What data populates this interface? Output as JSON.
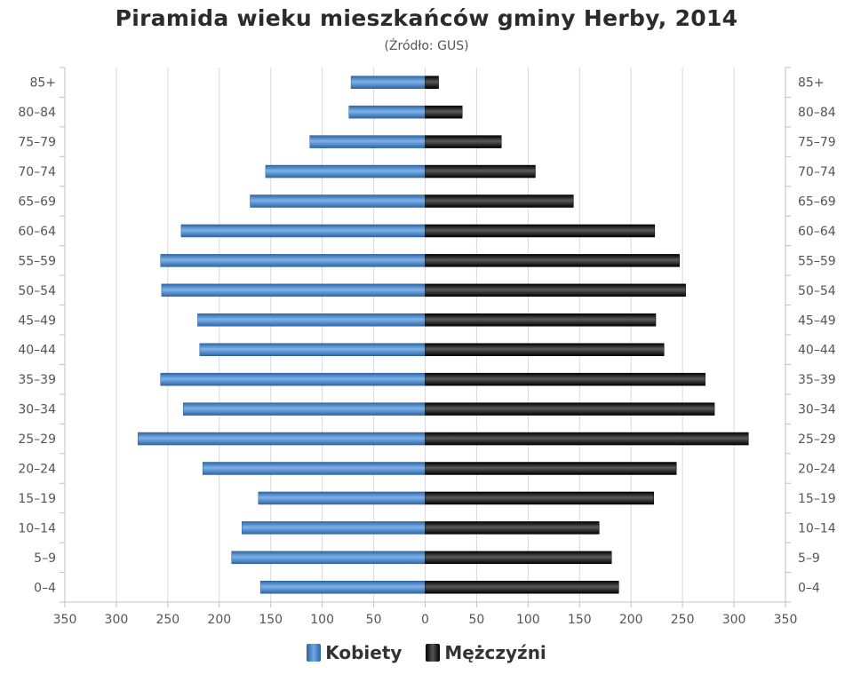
{
  "chart_data": {
    "type": "bar",
    "orientation": "horizontal",
    "title": "Piramida wieku mieszkańców gminy Herby, 2014",
    "subtitle": "(Źródło: GUS)",
    "categories": [
      "85+",
      "80–84",
      "75–79",
      "70–74",
      "65–69",
      "60–64",
      "55–59",
      "50–54",
      "45–49",
      "40–44",
      "35–39",
      "30–34",
      "25–29",
      "20–24",
      "15–19",
      "10–14",
      "5–9",
      "0–4"
    ],
    "series": [
      {
        "name": "Kobiety",
        "color": "#4a86c8",
        "values": [
          72,
          74,
          112,
          155,
          170,
          237,
          257,
          256,
          221,
          219,
          257,
          235,
          279,
          216,
          162,
          178,
          188,
          160
        ]
      },
      {
        "name": "Mężczyźni",
        "color": "#111111",
        "values": [
          13,
          36,
          74,
          107,
          144,
          223,
          247,
          253,
          224,
          232,
          272,
          281,
          314,
          244,
          222,
          169,
          181,
          188
        ]
      }
    ],
    "xlim": [
      -350,
      350
    ],
    "x_ticks": [
      -350,
      -300,
      -250,
      -200,
      -150,
      -100,
      -50,
      0,
      50,
      100,
      150,
      200,
      250,
      300,
      350
    ],
    "x_tick_labels": [
      "350",
      "300",
      "250",
      "200",
      "150",
      "100",
      "50",
      "0",
      "50",
      "100",
      "150",
      "200",
      "250",
      "300",
      "350"
    ],
    "grid": true,
    "legend_position": "bottom-center"
  }
}
